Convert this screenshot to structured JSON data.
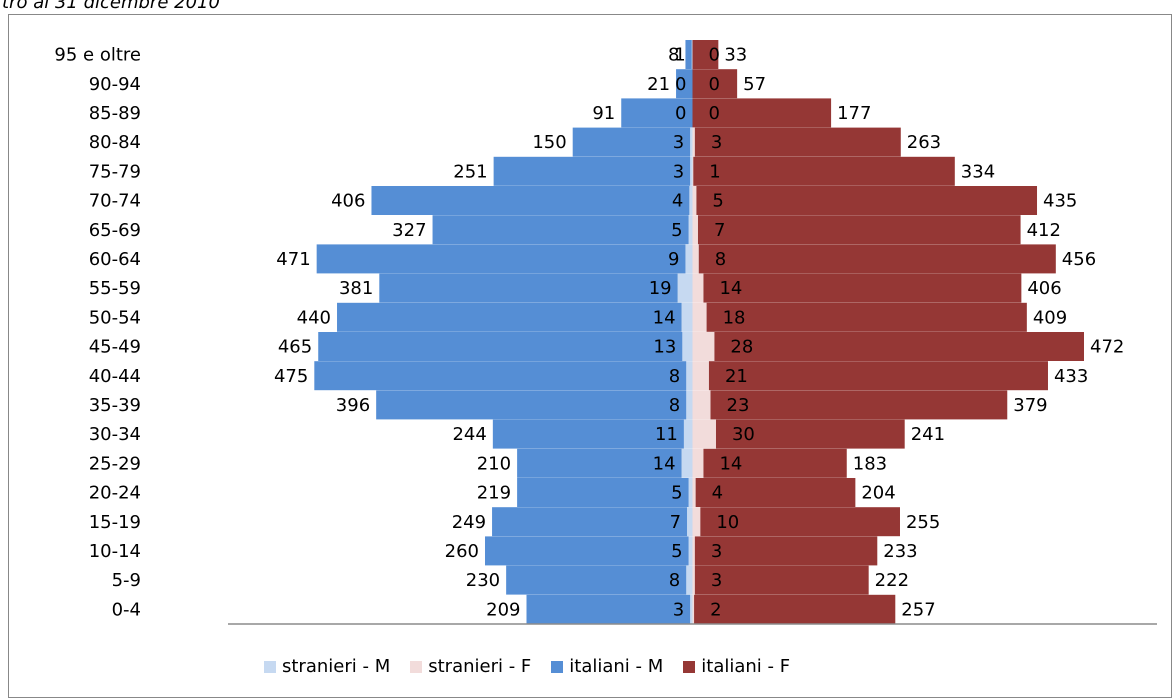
{
  "caption": "tro al 31 dicembre 2010",
  "colors": {
    "stranieri_m": "#c6d9f1",
    "stranieri_f": "#f2dcdb",
    "italiani_m": "#558ed5",
    "italiani_f": "#953735",
    "axis": "#8c8c8c"
  },
  "chart_data": {
    "type": "bar",
    "orientation": "horizontal",
    "stacked": true,
    "categories": [
      "95 e oltre",
      "90-94",
      "85-89",
      "80-84",
      "75-79",
      "70-74",
      "65-69",
      "60-64",
      "55-59",
      "50-54",
      "45-49",
      "40-44",
      "35-39",
      "30-34",
      "25-29",
      "20-24",
      "15-19",
      "10-14",
      "5-9",
      "0-4"
    ],
    "series": [
      {
        "name": "stranieri - M",
        "side": "left",
        "values": [
          1,
          0,
          0,
          3,
          3,
          4,
          5,
          9,
          19,
          14,
          13,
          8,
          8,
          11,
          14,
          5,
          7,
          5,
          8,
          3
        ]
      },
      {
        "name": "stranieri - F",
        "side": "right",
        "values": [
          0,
          0,
          0,
          3,
          1,
          5,
          7,
          8,
          14,
          18,
          28,
          21,
          23,
          30,
          14,
          4,
          10,
          3,
          3,
          2
        ]
      },
      {
        "name": "italiani - M",
        "side": "left",
        "values": [
          8,
          21,
          91,
          150,
          251,
          406,
          327,
          471,
          381,
          440,
          465,
          475,
          396,
          244,
          210,
          219,
          249,
          260,
          230,
          209
        ]
      },
      {
        "name": "italiani - F",
        "side": "right",
        "values": [
          33,
          57,
          177,
          263,
          334,
          435,
          412,
          456,
          406,
          409,
          472,
          433,
          379,
          241,
          183,
          204,
          255,
          233,
          222,
          257
        ]
      }
    ],
    "legend_position": "bottom",
    "grid": false
  },
  "legend": [
    {
      "label": "stranieri - M",
      "color_key": "stranieri_m"
    },
    {
      "label": "stranieri - F",
      "color_key": "stranieri_f"
    },
    {
      "label": "italiani - M",
      "color_key": "italiani_m"
    },
    {
      "label": "italiani - F",
      "color_key": "italiani_f"
    }
  ]
}
